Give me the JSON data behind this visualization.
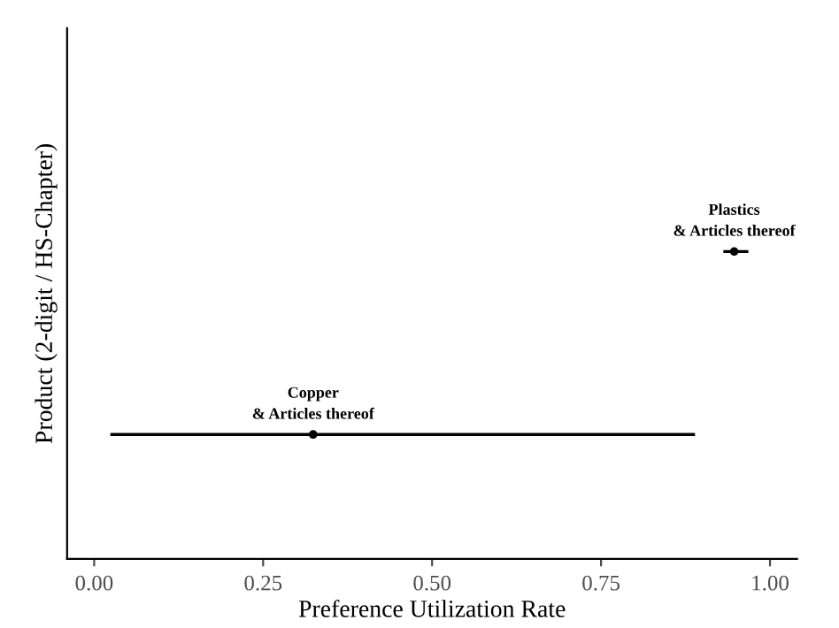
{
  "chart_data": {
    "type": "scatter",
    "orientation": "horizontal",
    "xlabel": "Preference Utilization Rate",
    "ylabel": "Product (2-digit / HS-Chapter)",
    "categories": [
      null,
      null
    ],
    "color": "#000000",
    "values": [
      0.947,
      0.324
    ],
    "errors": [
      [
        0.931,
        0.968
      ],
      [
        0.024,
        0.889
      ]
    ],
    "annotations": [
      "Plastics\n& Articles thereof",
      "Copper\n& Articles thereof"
    ],
    "xlim": [
      -0.04,
      1.04
    ],
    "xticks": [
      {
        "value": 0,
        "label": "0.00"
      },
      0.25,
      {
        "value": 0.5,
        "label": "0.50"
      },
      0.75,
      {
        "value": 1,
        "label": "1.00"
      }
    ],
    "marker": "circle",
    "grid": false,
    "tick_labels": "x"
  }
}
